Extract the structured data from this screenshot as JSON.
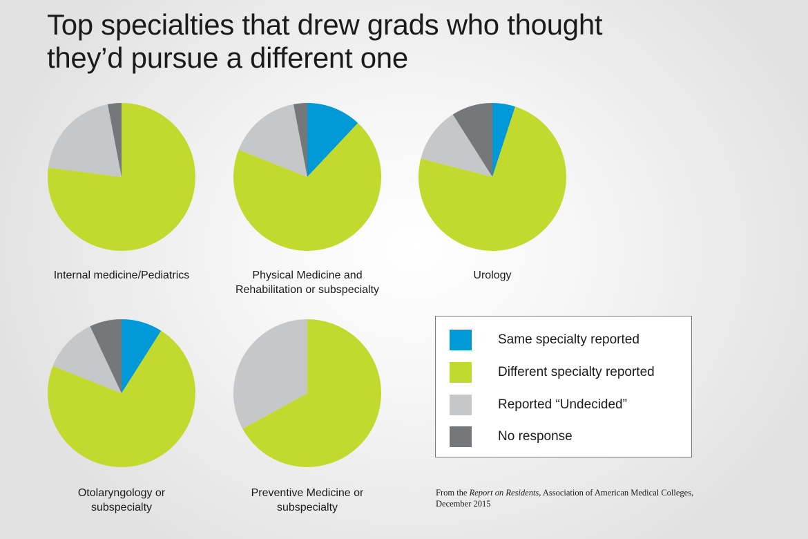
{
  "title": {
    "line1": "Top specialties that drew grads who thought",
    "line2": "they’d pursue a different one"
  },
  "legend": [
    {
      "label": "Same specialty reported",
      "color": "#0099d8"
    },
    {
      "label": "Different specialty reported",
      "color": "#c2d92e"
    },
    {
      "label": "Reported “Undecided”",
      "color": "#c6c7c9"
    },
    {
      "label": "No response",
      "color": "#76777a"
    }
  ],
  "chart_data": [
    {
      "type": "pie",
      "label_lines": [
        "Internal medicine/Pediatrics"
      ],
      "slices": [
        {
          "name": "Same specialty reported",
          "value": 0,
          "color": "#0099d8"
        },
        {
          "name": "Different specialty reported",
          "value": 77,
          "color": "#c2d92e"
        },
        {
          "name": "Reported “Undecided”",
          "value": 20,
          "color": "#c6c7c9"
        },
        {
          "name": "No response",
          "value": 3,
          "color": "#76777a"
        }
      ]
    },
    {
      "type": "pie",
      "label_lines": [
        "Physical Medicine and",
        "Rehabilitation or subspecialty"
      ],
      "slices": [
        {
          "name": "Same specialty reported",
          "value": 12,
          "color": "#0099d8"
        },
        {
          "name": "Different specialty reported",
          "value": 69,
          "color": "#c2d92e"
        },
        {
          "name": "Reported “Undecided”",
          "value": 16,
          "color": "#c6c7c9"
        },
        {
          "name": "No response",
          "value": 3,
          "color": "#76777a"
        }
      ]
    },
    {
      "type": "pie",
      "label_lines": [
        "Urology"
      ],
      "slices": [
        {
          "name": "Same specialty reported",
          "value": 5,
          "color": "#0099d8"
        },
        {
          "name": "Different specialty reported",
          "value": 74,
          "color": "#c2d92e"
        },
        {
          "name": "Reported “Undecided”",
          "value": 12,
          "color": "#c6c7c9"
        },
        {
          "name": "No response",
          "value": 9,
          "color": "#76777a"
        }
      ]
    },
    {
      "type": "pie",
      "label_lines": [
        "Otolaryngology or",
        "subspecialty"
      ],
      "slices": [
        {
          "name": "Same specialty reported",
          "value": 9,
          "color": "#0099d8"
        },
        {
          "name": "Different specialty reported",
          "value": 72,
          "color": "#c2d92e"
        },
        {
          "name": "Reported “Undecided”",
          "value": 12,
          "color": "#c6c7c9"
        },
        {
          "name": "No response",
          "value": 7,
          "color": "#76777a"
        }
      ]
    },
    {
      "type": "pie",
      "label_lines": [
        "Preventive Medicine or",
        "subspecialty"
      ],
      "slices": [
        {
          "name": "Same specialty reported",
          "value": 0,
          "color": "#0099d8"
        },
        {
          "name": "Different specialty reported",
          "value": 67,
          "color": "#c2d92e"
        },
        {
          "name": "Reported “Undecided”",
          "value": 33,
          "color": "#c6c7c9"
        },
        {
          "name": "No response",
          "value": 0,
          "color": "#76777a"
        }
      ]
    }
  ],
  "source": {
    "prefix": "From the ",
    "report": "Report on Residents",
    "suffix": ", Association of American Medical Colleges,",
    "line2": "December 2015"
  }
}
